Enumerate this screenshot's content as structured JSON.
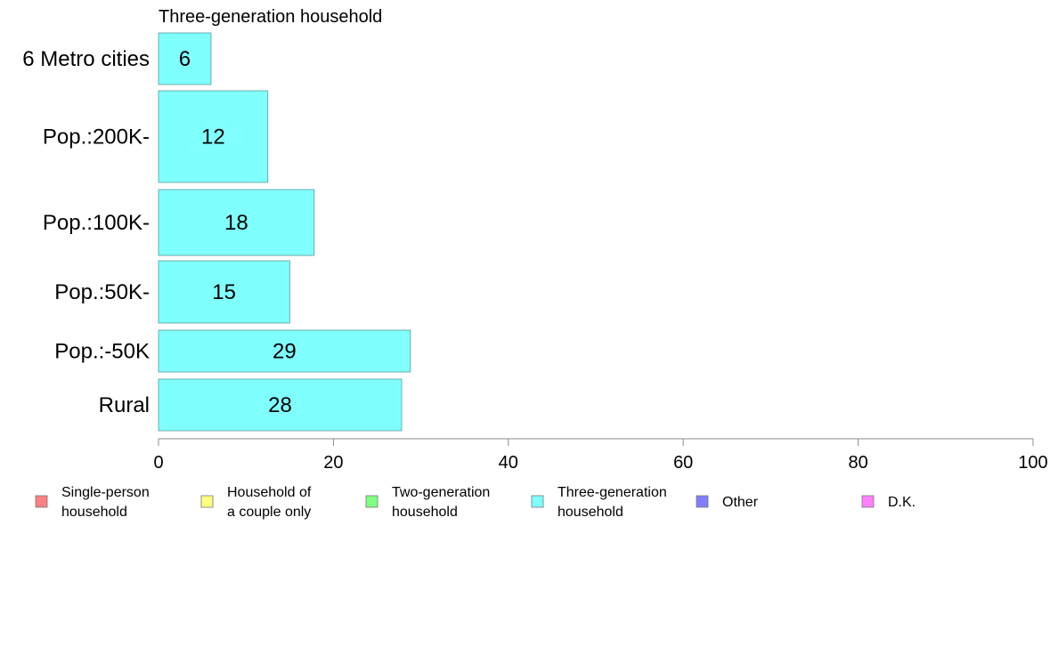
{
  "chart_data": {
    "type": "bar",
    "orientation": "horizontal",
    "title": "Three-generation household",
    "xlabel": "",
    "ylabel": "",
    "xlim": [
      0,
      100
    ],
    "xticks": [
      0,
      20,
      40,
      60,
      80,
      100
    ],
    "grid": false,
    "legend_position": "bottom",
    "categories": [
      "6 Metro cities",
      "Pop.:200K-",
      "Pop.:100K-",
      "Pop.:50K-",
      "Pop.:-50K",
      "Rural"
    ],
    "series": [
      {
        "name": "Three-generation household",
        "color": "#80ffff",
        "values": [
          6,
          12.5,
          17.8,
          15,
          28.8,
          27.8
        ],
        "labels": [
          "6",
          "12",
          "18",
          "15",
          "29",
          "28"
        ]
      }
    ],
    "legend": [
      {
        "lines": [
          "Single-person",
          "household"
        ],
        "color": "#ff8080"
      },
      {
        "lines": [
          "Household of",
          "a couple only"
        ],
        "color": "#ffff80"
      },
      {
        "lines": [
          "Two-generation",
          "household"
        ],
        "color": "#80ff80"
      },
      {
        "lines": [
          "Three-generation",
          "household"
        ],
        "color": "#80ffff"
      },
      {
        "lines": [
          "Other"
        ],
        "color": "#8080ff"
      },
      {
        "lines": [
          "D.K."
        ],
        "color": "#ff80ff"
      }
    ]
  }
}
